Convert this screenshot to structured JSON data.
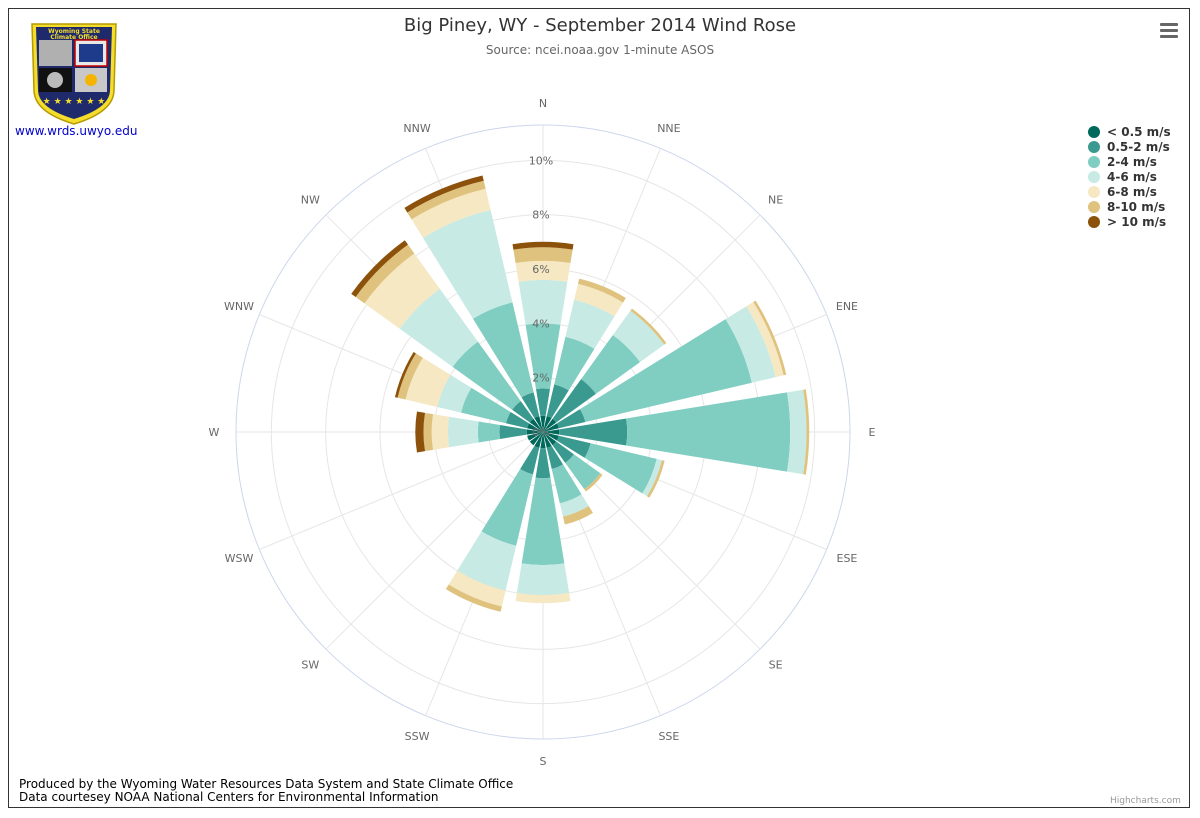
{
  "header": {
    "title": "Big Piney, WY - September 2014 Wind Rose",
    "subtitle": "Source: ncei.noaa.gov 1-minute ASOS"
  },
  "logo": {
    "line1": "Wyoming State",
    "line2": "Climate Office",
    "link": "www.wrds.uwyo.edu"
  },
  "footer": {
    "line1": "Produced by the Wyoming Water Resources Data System and State Climate Office",
    "line2": "Data courtesey NOAA National Centers for Environmental Information"
  },
  "credits": "Highcharts.com",
  "menu": {
    "icon": "hamburger-menu-icon"
  },
  "colors": {
    "grid": "#e6e6e6",
    "outer_ring": "#ccd6eb"
  },
  "chart_data": {
    "type": "windrose",
    "title": "Big Piney, WY - September 2014 Wind Rose",
    "subtitle": "Source: ncei.noaa.gov 1-minute ASOS",
    "categories": [
      "N",
      "NNE",
      "NE",
      "ENE",
      "E",
      "ESE",
      "SE",
      "SSE",
      "S",
      "SSW",
      "SW",
      "WSW",
      "W",
      "WNW",
      "NW",
      "NNW"
    ],
    "unit": "%",
    "radial_ticks": [
      "0%",
      "2%",
      "4%",
      "6%",
      "8%",
      "10%"
    ],
    "rmax": 11.3,
    "stacked": true,
    "legend_position": "top-right",
    "series": [
      {
        "name": "< 0.5 m/s",
        "color": "#00695c",
        "values": [
          0.6,
          0.6,
          0.6,
          0.6,
          0.6,
          0.6,
          0.6,
          0.6,
          0.6,
          0.6,
          0.6,
          0.6,
          0.6,
          0.6,
          0.6,
          0.6
        ]
      },
      {
        "name": "0.5-2 m/s",
        "color": "#3a9a90",
        "values": [
          1.0,
          1.2,
          1.8,
          1.0,
          2.5,
          1.2,
          0.8,
          0.8,
          1.1,
          1.0,
          0,
          0,
          1.0,
          0.8,
          0.8,
          0.9
        ]
      },
      {
        "name": "2-4 m/s",
        "color": "#80cdc1",
        "values": [
          2.4,
          1.8,
          2.0,
          6.3,
          6.0,
          2.5,
          1.2,
          1.3,
          3.2,
          2.7,
          0,
          0,
          0.8,
          1.7,
          2.7,
          3.4
        ]
      },
      {
        "name": "4-6 m/s",
        "color": "#c7eae5",
        "values": [
          1.6,
          1.4,
          1.1,
          0.9,
          0.6,
          0.2,
          0,
          0.5,
          1.1,
          1.7,
          0,
          0,
          1.1,
          0.9,
          2.4,
          3.5
        ]
      },
      {
        "name": "6-8 m/s",
        "color": "#f6e8c3",
        "values": [
          0.7,
          0.6,
          0,
          0.3,
          0,
          0,
          0,
          0,
          0.3,
          0.6,
          0,
          0,
          0.6,
          1.2,
          1.6,
          0.8
        ]
      },
      {
        "name": "8-10 m/s",
        "color": "#dfc27d",
        "values": [
          0.5,
          0.2,
          0.1,
          0.1,
          0.1,
          0.1,
          0.1,
          0.3,
          0,
          0.2,
          0,
          0,
          0.3,
          0.3,
          0.4,
          0.3
        ]
      },
      {
        "name": "> 10 m/s",
        "color": "#8c510a",
        "values": [
          0.2,
          0,
          0,
          0,
          0,
          0,
          0,
          0,
          0,
          0,
          0,
          0,
          0.3,
          0.1,
          0.2,
          0.2
        ]
      }
    ]
  }
}
